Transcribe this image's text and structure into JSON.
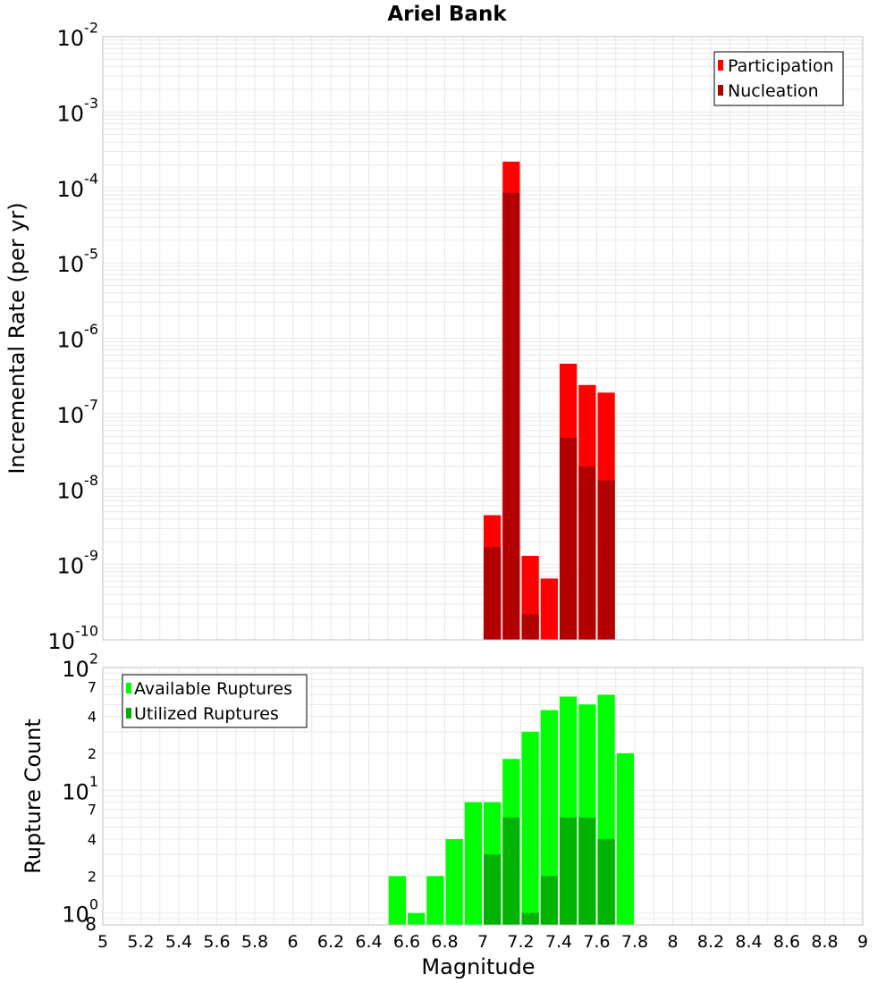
{
  "title": "Ariel Bank",
  "colors": {
    "participation": "#ff0000",
    "nucleation": "#b20000",
    "available": "#00ff00",
    "utilized": "#00b300",
    "plot_border": "#c0c0c0",
    "grid": "#e8e8e8"
  },
  "chart_data": [
    {
      "type": "bar",
      "panel": "top",
      "ylabel": "Incremental Rate (per yr)",
      "yscale": "log",
      "ylim": [
        1e-10,
        0.01
      ],
      "xlim": [
        5,
        9
      ],
      "bar_width": 0.1,
      "y_ticks": [
        {
          "base": "10",
          "exp": "-2"
        },
        {
          "base": "10",
          "exp": "-3"
        },
        {
          "base": "10",
          "exp": "-4"
        },
        {
          "base": "10",
          "exp": "-5"
        },
        {
          "base": "10",
          "exp": "-6"
        },
        {
          "base": "10",
          "exp": "-7"
        },
        {
          "base": "10",
          "exp": "-8"
        },
        {
          "base": "10",
          "exp": "-9"
        },
        {
          "base": "10",
          "exp": "-10"
        }
      ],
      "legend": {
        "position": "top-right",
        "entries": [
          "Participation",
          "Nucleation"
        ]
      },
      "series": [
        {
          "name": "Participation",
          "x": [
            7.05,
            7.15,
            7.25,
            7.35,
            7.45,
            7.55,
            7.65
          ],
          "values": [
            4.5e-09,
            0.00022,
            1.3e-09,
            6.5e-10,
            4.6e-07,
            2.4e-07,
            1.9e-07
          ]
        },
        {
          "name": "Nucleation",
          "x": [
            7.05,
            7.15,
            7.25,
            7.45,
            7.55,
            7.65
          ],
          "values": [
            1.7e-09,
            8.5e-05,
            2.2e-10,
            4.8e-08,
            2e-08,
            1.3e-08
          ]
        }
      ]
    },
    {
      "type": "bar",
      "panel": "bottom",
      "ylabel": "Rupture Count",
      "xlabel": "Magnitude",
      "yscale": "log",
      "ylim": [
        0.8,
        100
      ],
      "xlim": [
        5,
        9
      ],
      "bar_width": 0.1,
      "y_major_ticks": [
        {
          "base": "10",
          "exp": "2",
          "value": 100
        },
        {
          "base": "10",
          "exp": "1",
          "value": 10
        },
        {
          "base": "10",
          "exp": "0",
          "value": 1
        }
      ],
      "y_minor_ticks": [
        {
          "label": "7",
          "value": 70
        },
        {
          "label": "4",
          "value": 40
        },
        {
          "label": "2",
          "value": 20
        },
        {
          "label": "7",
          "value": 7
        },
        {
          "label": "4",
          "value": 4
        },
        {
          "label": "2",
          "value": 2
        },
        {
          "label": "8",
          "value": 0.8
        }
      ],
      "x_ticks": [
        "5",
        "5.2",
        "5.4",
        "5.6",
        "5.8",
        "6",
        "6.2",
        "6.4",
        "6.6",
        "6.8",
        "7",
        "7.2",
        "7.4",
        "7.6",
        "7.8",
        "8",
        "8.2",
        "8.4",
        "8.6",
        "8.8",
        "9"
      ],
      "legend": {
        "position": "top-left",
        "entries": [
          "Available Ruptures",
          "Utilized Ruptures"
        ]
      },
      "series": [
        {
          "name": "Available Ruptures",
          "x": [
            6.55,
            6.65,
            6.75,
            6.85,
            6.95,
            7.05,
            7.15,
            7.25,
            7.35,
            7.45,
            7.55,
            7.65,
            7.75
          ],
          "values": [
            2,
            1,
            2,
            4,
            8,
            8,
            18,
            30,
            45,
            58,
            50,
            60,
            20
          ]
        },
        {
          "name": "Utilized Ruptures",
          "x": [
            7.05,
            7.15,
            7.25,
            7.35,
            7.45,
            7.55,
            7.65
          ],
          "values": [
            3,
            6,
            1,
            2,
            6,
            6,
            4
          ]
        }
      ]
    }
  ]
}
